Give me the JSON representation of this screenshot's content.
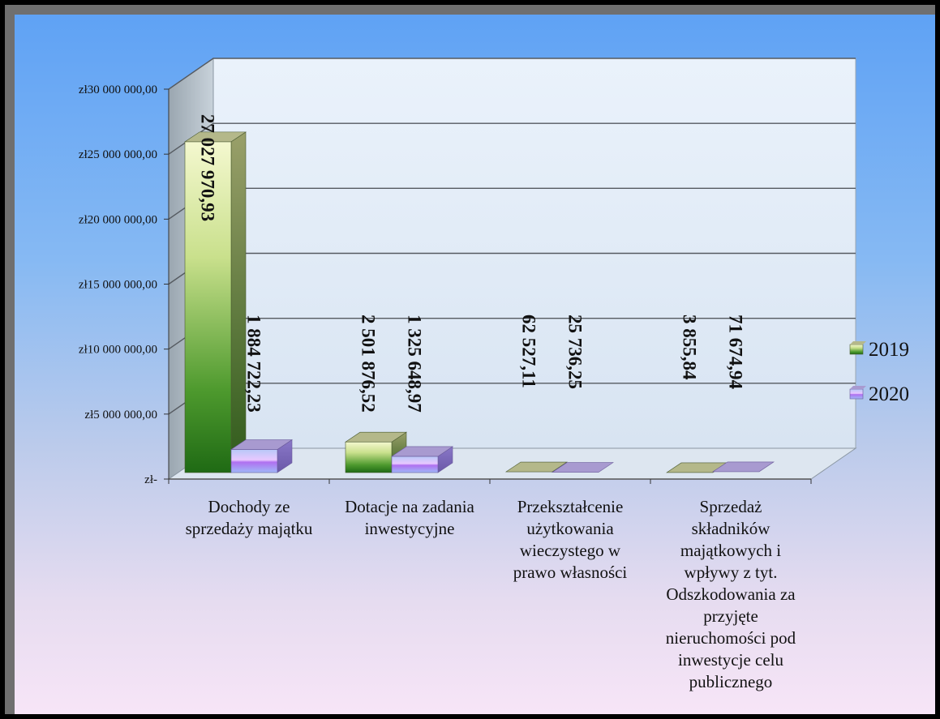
{
  "chart_data": {
    "type": "bar",
    "title": "",
    "xlabel": "",
    "ylabel": "",
    "ylim": [
      0,
      30000000
    ],
    "yticks": [
      0,
      5000000,
      10000000,
      15000000,
      20000000,
      25000000,
      30000000
    ],
    "ytick_labels": [
      "zł-",
      "zł5 000 000,00",
      "zł10 000 000,00",
      "zł15 000 000,00",
      "zł20 000 000,00",
      "zł25 000 000,00",
      "zł30 000 000,00"
    ],
    "categories": [
      "Dochody ze sprzedaży majątku",
      "Dotacje na zadania inwestycyjne",
      "Przekształcenie użytkowania wieczystego w prawo własności",
      "Sprzedaż składników majątkowych i wpływy z tyt. Odszkodowania za przyjęte nieruchomości pod inwestycje celu publicznego"
    ],
    "series": [
      {
        "name": "2019",
        "color": "#3a8a2a",
        "values": [
          27027970.93,
          2501876.52,
          62527.11,
          3855.84
        ],
        "labels": [
          "27 027 970,93",
          "2 501 876,52",
          "62 527,11",
          "3 855,84"
        ]
      },
      {
        "name": "2020",
        "color": "#b48cf0",
        "values": [
          1884722.23,
          1325648.97,
          25736.25,
          71674.94
        ],
        "labels": [
          "1 884 722,23",
          "1 325 648,97",
          "25 736,25",
          "71 674,94"
        ]
      }
    ],
    "legend": "right",
    "grid": true
  }
}
